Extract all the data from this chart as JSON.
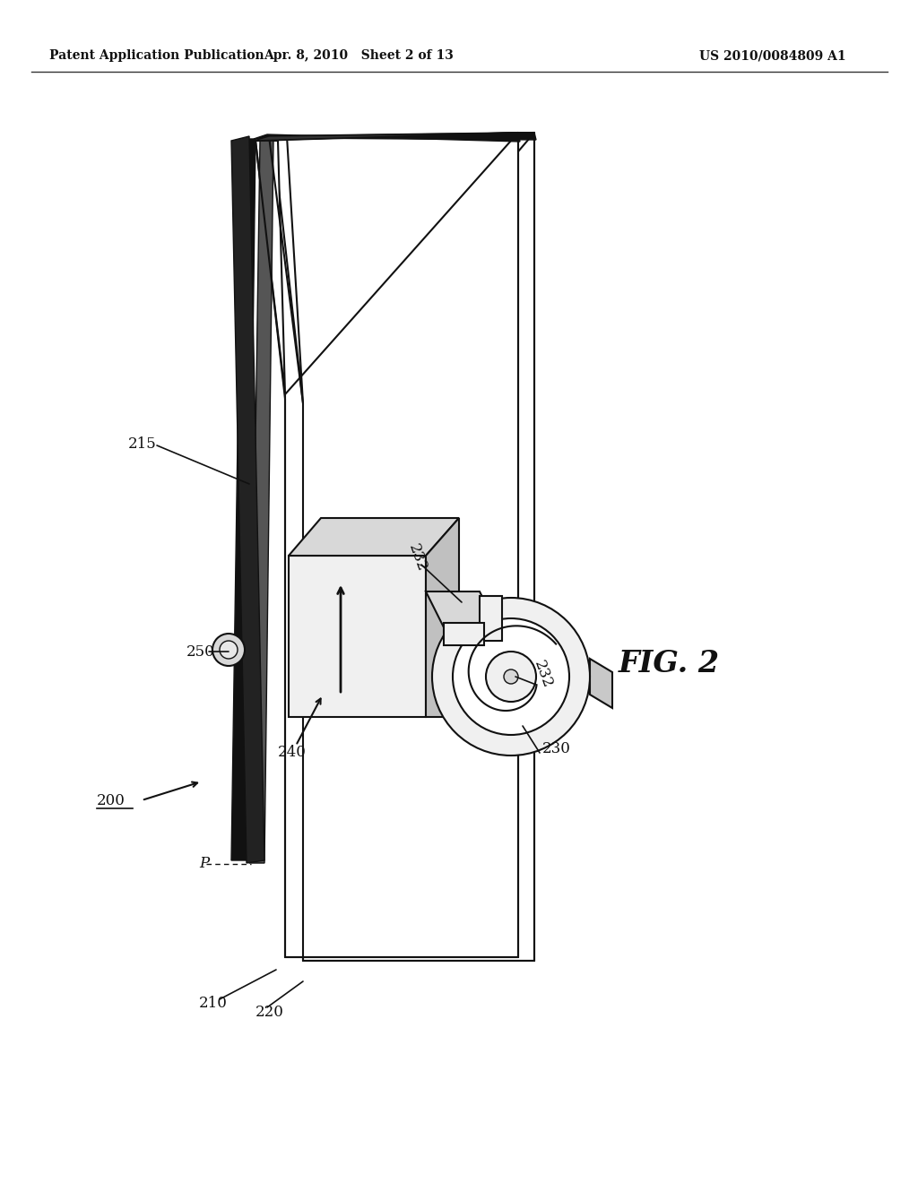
{
  "background_color": "#ffffff",
  "header_left": "Patent Application Publication",
  "header_center": "Apr. 8, 2010   Sheet 2 of 13",
  "header_right": "US 2010/0084809 A1",
  "fig_label": "FIG. 2",
  "line_color": "#111111",
  "fill_white": "#ffffff",
  "fill_light": "#f0f0f0",
  "fill_mid": "#d8d8d8",
  "fill_dark": "#333333",
  "fill_black": "#111111"
}
